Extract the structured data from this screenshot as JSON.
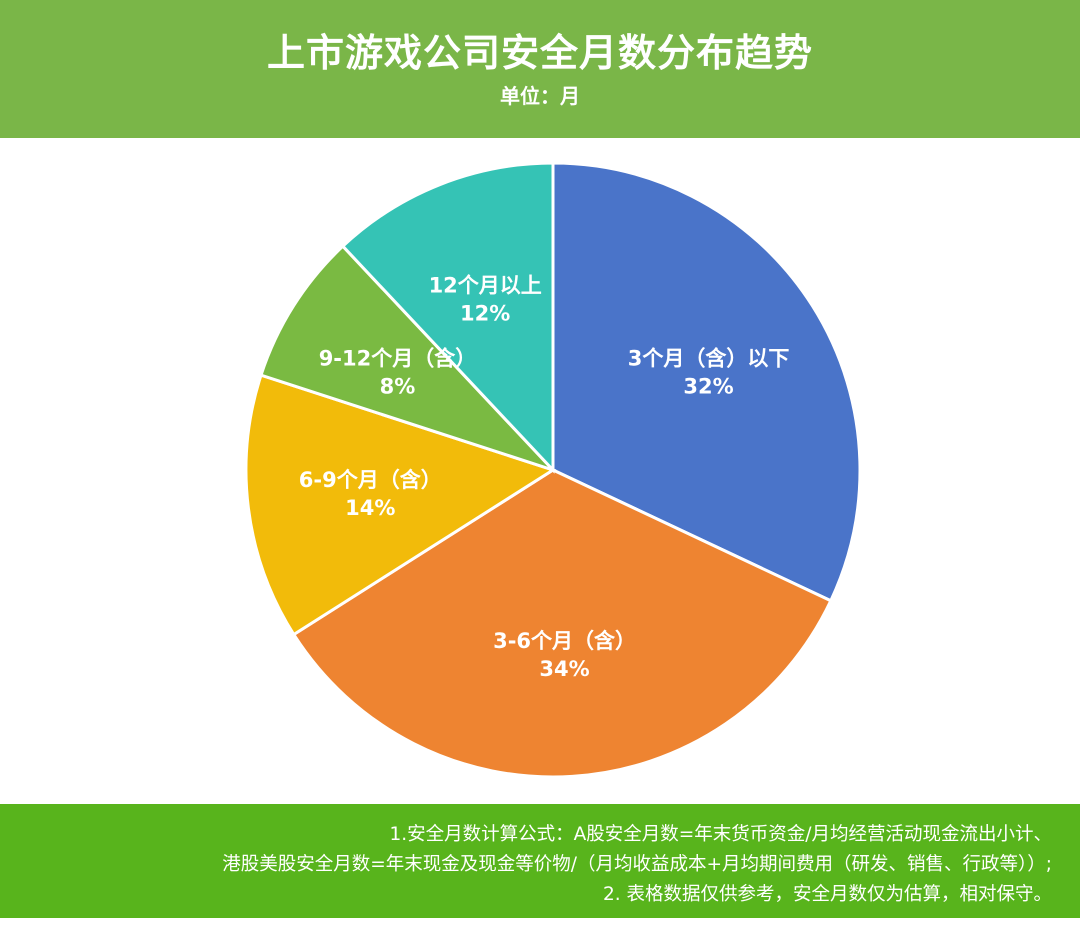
{
  "header": {
    "title": "上市游戏公司安全月数分布趋势",
    "subtitle": "单位：月"
  },
  "chart_data": {
    "type": "pie",
    "title": "上市游戏公司安全月数分布趋势",
    "subtitle": "单位：月",
    "slices": [
      {
        "label": "3个月（含）以下",
        "pct_label": "32%",
        "value": 32,
        "color": "#4a74c9"
      },
      {
        "label": "3-6个月（含）",
        "pct_label": "34%",
        "value": 34,
        "color": "#ee8431"
      },
      {
        "label": "6-9个月（含）",
        "pct_label": "14%",
        "value": 14,
        "color": "#f2bb0a"
      },
      {
        "label": "9-12个月（含）",
        "pct_label": "8%",
        "value": 8,
        "color": "#7aba42"
      },
      {
        "label": "12个月以上",
        "pct_label": "12%",
        "value": 12,
        "color": "#35c3b5"
      }
    ]
  },
  "footer": {
    "note_line1": "1.安全月数计算公式：A股安全月数=年末货币资金/月均经营活动现金流出小计、",
    "note_line2": "港股美股安全月数=年末现金及现金等价物/（月均收益成本+月均期间费用（研发、销售、行政等））;",
    "note_line3": "2. 表格数据仅供参考，安全月数仅为估算，相对保守。"
  }
}
